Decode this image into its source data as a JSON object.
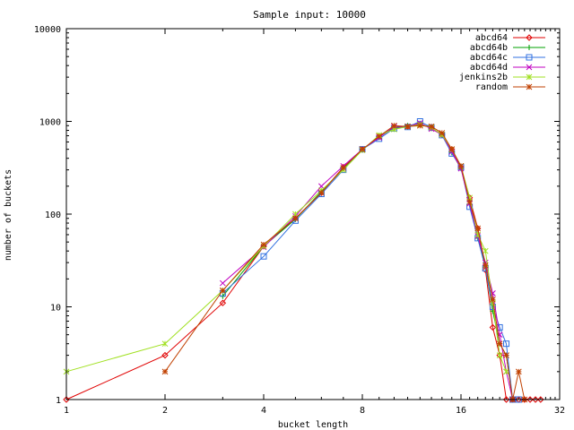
{
  "chart_data": {
    "type": "line",
    "title": "Sample input: 10000",
    "xlabel": "bucket length",
    "ylabel": "number of buckets",
    "x_scale": "log2",
    "y_scale": "log10",
    "xlim": [
      1,
      32
    ],
    "ylim": [
      1,
      10000
    ],
    "x_ticks": [
      1,
      2,
      4,
      8,
      16,
      32
    ],
    "x_tick_labels": [
      "1",
      "2",
      "4",
      "8",
      "16",
      "32"
    ],
    "y_ticks": [
      1,
      10,
      100,
      1000,
      10000
    ],
    "y_tick_labels": [
      "1",
      "10",
      "100",
      "1000",
      "10000"
    ],
    "grid": false,
    "legend_position": "top-right",
    "series": [
      {
        "name": "abcd64",
        "color": "#e00000",
        "marker": "diamond",
        "x": [
          1,
          2,
          3,
          4,
          5,
          6,
          7,
          8,
          9,
          10,
          11,
          12,
          13,
          14,
          15,
          16,
          17,
          18,
          19,
          20,
          21,
          22,
          23,
          24,
          25,
          26,
          27,
          28
        ],
        "y": [
          1,
          3,
          11,
          45,
          90,
          170,
          320,
          500,
          680,
          850,
          880,
          930,
          850,
          720,
          500,
          320,
          150,
          70,
          25,
          6,
          3,
          1,
          1,
          1,
          1,
          1,
          1,
          1
        ]
      },
      {
        "name": "abcd64b",
        "color": "#00a000",
        "marker": "plus",
        "x": [
          3,
          4,
          5,
          6,
          7,
          8,
          9,
          10,
          11,
          12,
          13,
          14,
          15,
          16,
          17,
          18,
          19,
          20,
          21,
          22,
          23
        ],
        "y": [
          13,
          45,
          88,
          175,
          310,
          500,
          680,
          860,
          900,
          950,
          840,
          720,
          460,
          310,
          140,
          55,
          27,
          9,
          4,
          3,
          1
        ]
      },
      {
        "name": "abcd64c",
        "color": "#3070e0",
        "marker": "square",
        "x": [
          3,
          4,
          5,
          6,
          7,
          8,
          9,
          10,
          11,
          12,
          13,
          14,
          15,
          16,
          17,
          18,
          19,
          20,
          21,
          22,
          23,
          24
        ],
        "y": [
          14,
          35,
          85,
          165,
          300,
          500,
          650,
          840,
          870,
          1000,
          860,
          710,
          450,
          320,
          120,
          55,
          26,
          10,
          6,
          4,
          1,
          1
        ]
      },
      {
        "name": "abcd64d",
        "color": "#c000c0",
        "marker": "cross",
        "x": [
          3,
          4,
          5,
          6,
          7,
          8,
          9,
          10,
          11,
          12,
          13,
          14,
          15,
          16,
          17,
          18,
          19,
          20,
          21,
          22,
          23
        ],
        "y": [
          18,
          44,
          95,
          200,
          330,
          500,
          670,
          880,
          880,
          960,
          830,
          720,
          470,
          310,
          130,
          58,
          30,
          14,
          5,
          2,
          1
        ]
      },
      {
        "name": "jenkins2b",
        "color": "#a0e020",
        "marker": "star",
        "x": [
          1,
          2,
          3,
          4,
          5,
          6,
          7,
          8,
          9,
          10,
          11,
          12,
          13,
          14,
          15,
          16,
          17,
          18,
          19,
          20,
          21,
          22
        ],
        "y": [
          2,
          4,
          15,
          45,
          100,
          180,
          300,
          490,
          710,
          820,
          880,
          920,
          860,
          720,
          500,
          330,
          150,
          60,
          40,
          11,
          3,
          2
        ]
      },
      {
        "name": "random",
        "color": "#c04000",
        "marker": "asterisk",
        "x": [
          2,
          3,
          4,
          5,
          6,
          7,
          8,
          9,
          10,
          11,
          12,
          13,
          14,
          15,
          16,
          17,
          18,
          19,
          20,
          21,
          22,
          23,
          24,
          25
        ],
        "y": [
          2,
          15,
          47,
          90,
          170,
          315,
          500,
          690,
          900,
          880,
          900,
          880,
          750,
          500,
          330,
          135,
          70,
          28,
          12,
          4,
          3,
          1,
          2,
          1
        ]
      }
    ]
  }
}
